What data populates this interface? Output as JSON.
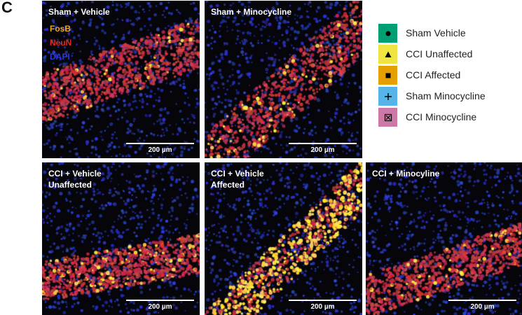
{
  "figure": {
    "panel_letter": "C",
    "stain_labels": [
      {
        "text": "FosB",
        "color": "#f0a818"
      },
      {
        "text": "NeuN",
        "color": "#e02818"
      },
      {
        "text": "DAPI",
        "color": "#2838e0"
      }
    ],
    "scale_label": "200 µm",
    "tiles": [
      {
        "title": "Sham + Vehicle",
        "fosb_density": 0.06
      },
      {
        "title": "Sham + Minocycline",
        "fosb_density": 0.1
      },
      {
        "title": "CCI + Vehicle\nUnaffected",
        "fosb_density": 0.12
      },
      {
        "title": "CCI + Vehicle\nAffected",
        "fosb_density": 0.55
      },
      {
        "title": "CCI + Minocyline",
        "fosb_density": 0.06
      }
    ]
  },
  "legend": {
    "items": [
      {
        "label": "Sham Vehicle",
        "color": "#009e73",
        "icon": "circle-icon"
      },
      {
        "label": "CCI Unaffected",
        "color": "#f0e442",
        "icon": "triangle-icon"
      },
      {
        "label": "CCI Affected",
        "color": "#e69f00",
        "icon": "square-icon"
      },
      {
        "label": "Sham Minocycline",
        "color": "#56b4e9",
        "icon": "plus-icon"
      },
      {
        "label": "CCI Minocycline",
        "color": "#cc79a7",
        "icon": "boxed-x-icon"
      }
    ]
  }
}
